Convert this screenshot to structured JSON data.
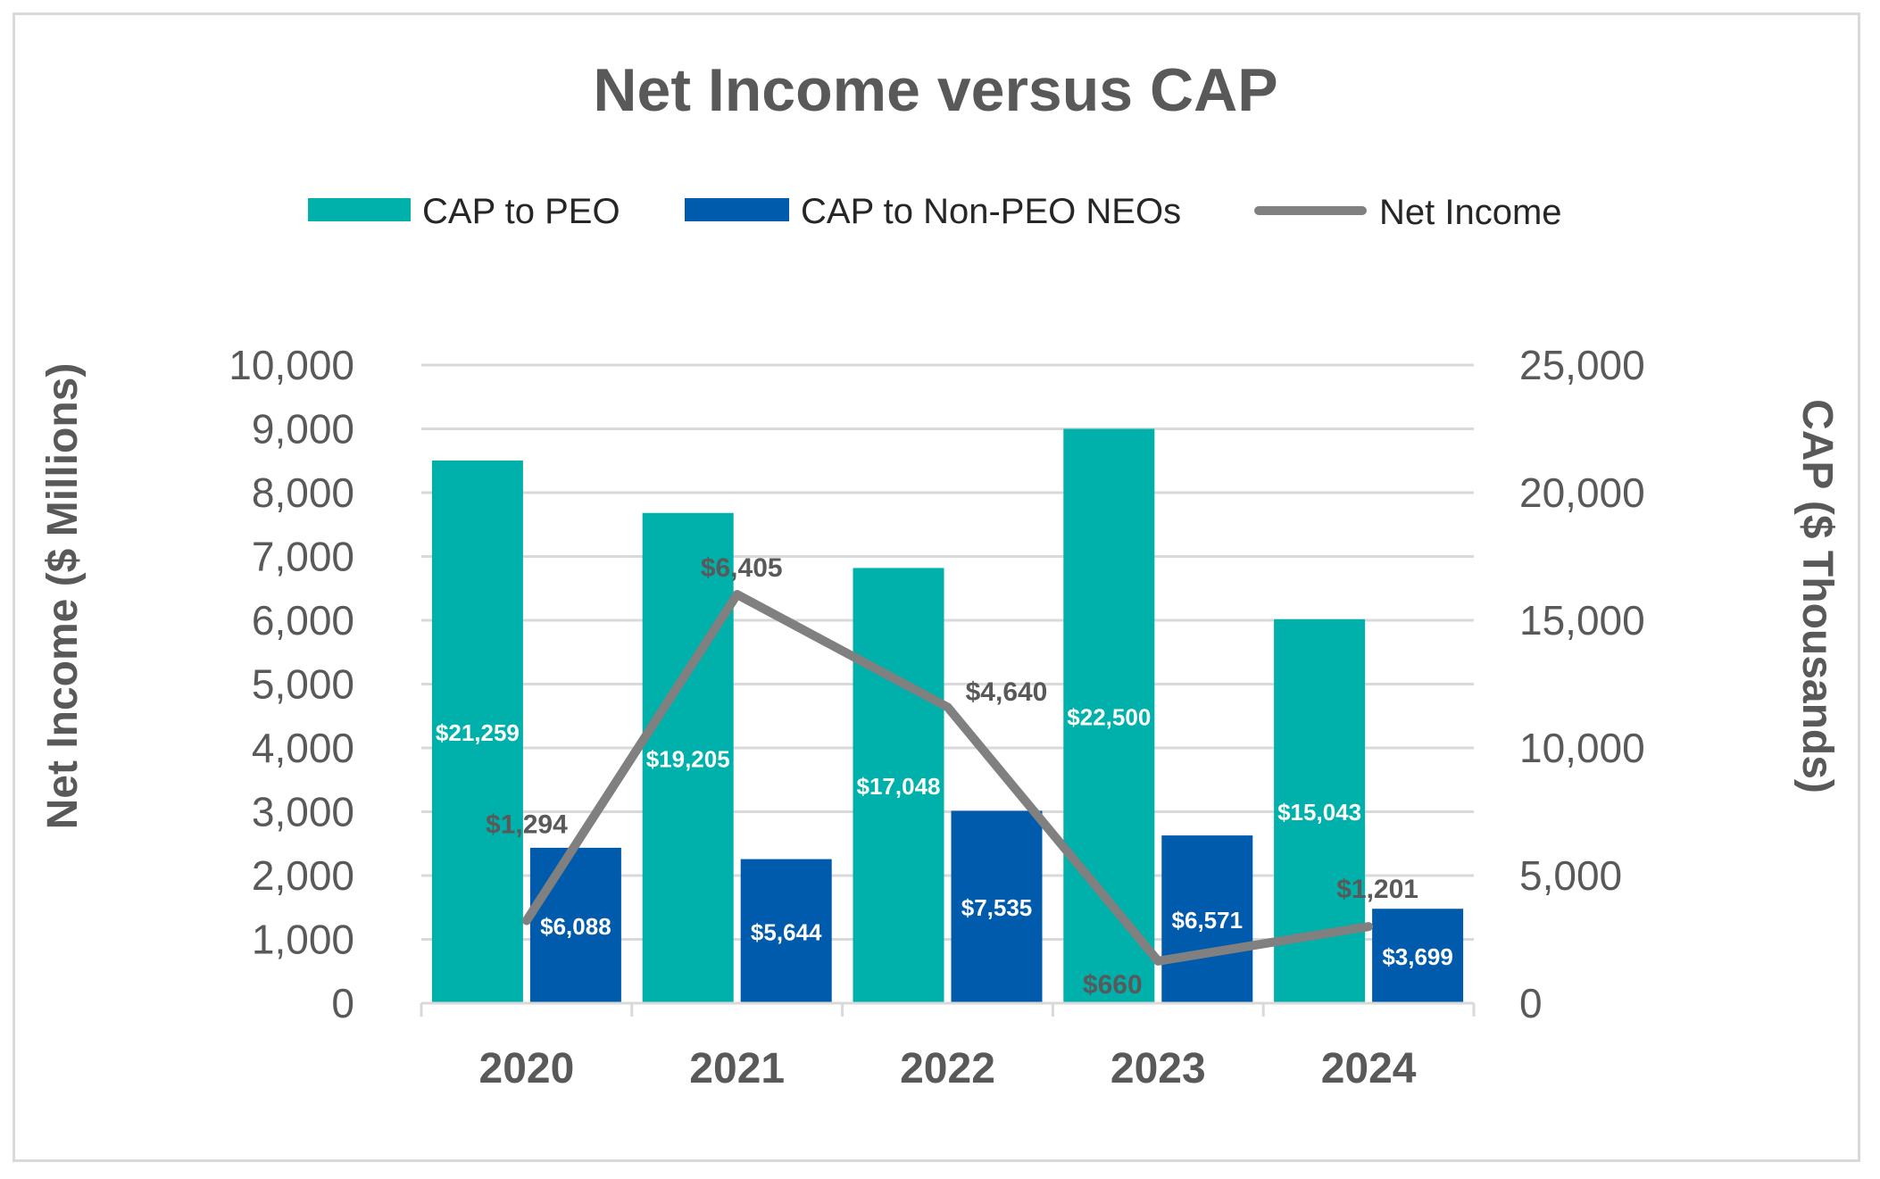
{
  "chart_data": {
    "type": "bar",
    "title": "Net Income versus CAP",
    "categories": [
      "2020",
      "2021",
      "2022",
      "2023",
      "2024"
    ],
    "series": [
      {
        "name": "CAP to PEO",
        "kind": "bar",
        "axis": "right",
        "color": "#00b0aa",
        "values": [
          21259,
          19205,
          17048,
          22500,
          15043
        ],
        "labels": [
          "$21,259",
          "$19,205",
          "$17,048",
          "$22,500",
          "$15,043"
        ]
      },
      {
        "name": "CAP to Non-PEO NEOs",
        "kind": "bar",
        "axis": "right",
        "color": "#005bac",
        "values": [
          6088,
          5644,
          7535,
          6571,
          3699
        ],
        "labels": [
          "$6,088",
          "$5,644",
          "$7,535",
          "$6,571",
          "$3,699"
        ]
      },
      {
        "name": "Net Income",
        "kind": "line",
        "axis": "left",
        "color": "#808080",
        "values": [
          1294,
          6405,
          4640,
          660,
          1201
        ],
        "labels": [
          "$1,294",
          "$6,405",
          "$4,640",
          "$660",
          "$1,201"
        ]
      }
    ],
    "ylabel": "Net Income ($ Millions)",
    "y2label": "CAP ($ Thousands)",
    "ylim": [
      0,
      10000
    ],
    "y2lim": [
      0,
      25000
    ],
    "yticks": [
      "0",
      "1,000",
      "2,000",
      "3,000",
      "4,000",
      "5,000",
      "6,000",
      "7,000",
      "8,000",
      "9,000",
      "10,000"
    ],
    "y2ticks": [
      "0",
      "5,000",
      "10,000",
      "15,000",
      "20,000",
      "25,000"
    ],
    "grid": true,
    "legend": "top-center"
  }
}
